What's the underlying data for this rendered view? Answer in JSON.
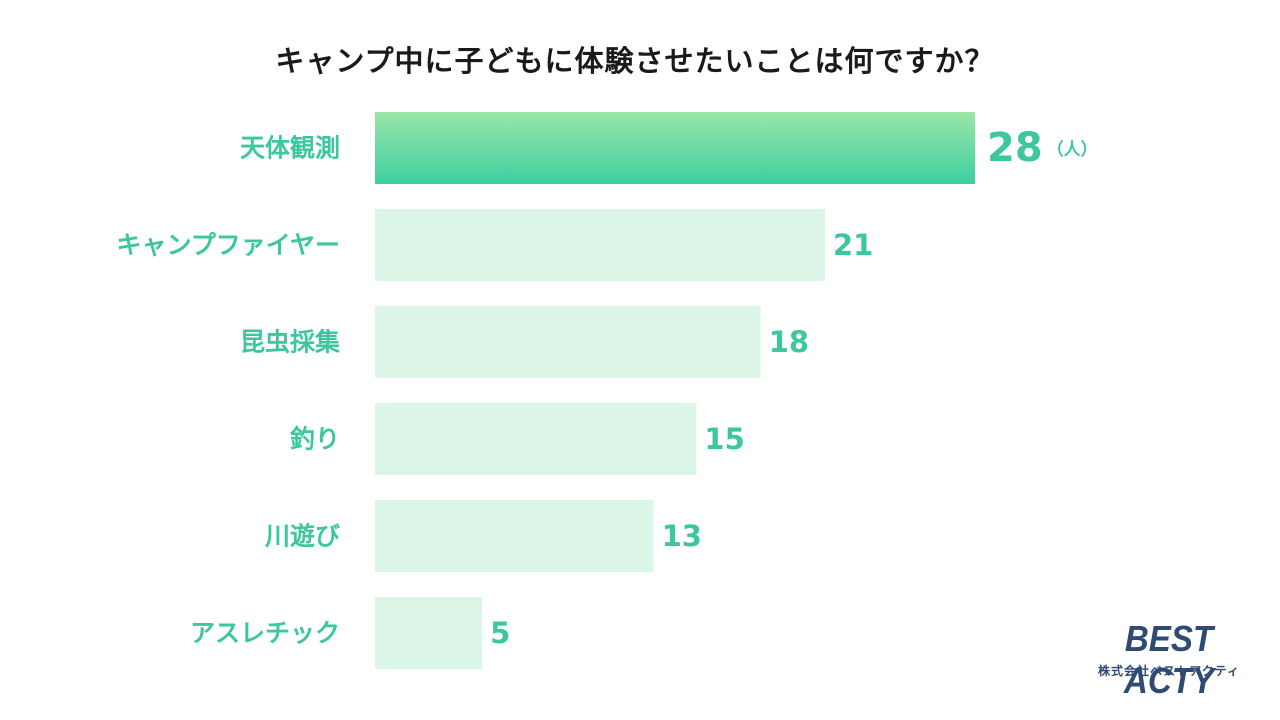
{
  "title": "キャンプ中に子どもに体験させたいことは何ですか？",
  "unit_label": "（人）",
  "logo": {
    "main": "BEST ACTY",
    "sub": "株式会社ベストアクティ"
  },
  "colors": {
    "highlight_top": "#9ae6a8",
    "highlight_bottom": "#3ecfa0",
    "bar_light": "#dcf7e8",
    "label_text": "#3cc7a0",
    "title_text": "#1a1a1a",
    "logo_text": "#2f4a73"
  },
  "chart_data": {
    "type": "bar",
    "orientation": "horizontal",
    "title": "キャンプ中に子どもに体験させたいことは何ですか？",
    "categories": [
      "天体観測",
      "キャンプファイヤー",
      "昆虫採集",
      "釣り",
      "川遊び",
      "アスレチック"
    ],
    "values": [
      28,
      21,
      18,
      15,
      13,
      5
    ],
    "unit": "（人）",
    "highlight_index": 0,
    "xlim": [
      0,
      28
    ],
    "grid": false,
    "legend": "none"
  }
}
